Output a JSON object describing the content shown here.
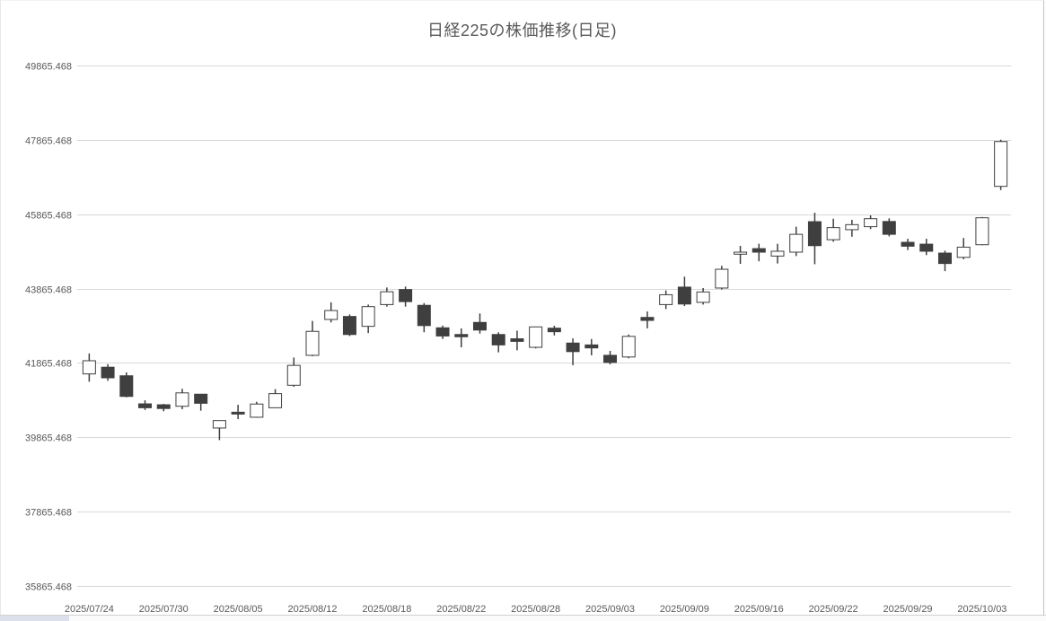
{
  "page": {
    "background": "#ffffff"
  },
  "chart": {
    "title": "日経225の株価推移(日足)",
    "y_axis": {
      "labels": [
        "49865.468",
        "47865.468",
        "45865.468",
        "43865.468",
        "41865.468",
        "39865.468",
        "37865.468",
        "35865.468"
      ],
      "min": 35865.468,
      "max": 49865.468,
      "step": 2000
    },
    "x_axis": {
      "labels": [
        "2025/07/24",
        "2025/07/30",
        "2025/08/05",
        "2025/08/12",
        "2025/08/18",
        "2025/08/22",
        "2025/08/28",
        "2025/09/03",
        "2025/09/09",
        "2025/09/16",
        "2025/09/22",
        "2025/09/29",
        "2025/10/03"
      ],
      "label_every_n_candles": 4
    },
    "colors": {
      "up_fill": "#ffffff",
      "down_fill": "#3f3f3f",
      "body_stroke": "#3f3f3f",
      "wick": "#3f3f3f",
      "gridline": "#d9d9d9",
      "axis_text": "#595959",
      "title_text": "#595959",
      "bottom_strip": "#dbe0eb"
    }
  },
  "chart_data": {
    "type": "candlestick",
    "title": "日経225の株価推移(日足)",
    "xlabel": "",
    "ylabel": "",
    "ylim": [
      35865.468,
      49865.468
    ],
    "grid": true,
    "legend": false,
    "candles": [
      {
        "date": "2025/07/24",
        "open": 41570,
        "high": 42120,
        "low": 41360,
        "close": 41925
      },
      {
        "date": "2025/07/25",
        "open": 41750,
        "high": 41830,
        "low": 41385,
        "close": 41465
      },
      {
        "date": "2025/07/28",
        "open": 41520,
        "high": 41610,
        "low": 40940,
        "close": 40965
      },
      {
        "date": "2025/07/29",
        "open": 40765,
        "high": 40860,
        "low": 40600,
        "close": 40660
      },
      {
        "date": "2025/07/30",
        "open": 40740,
        "high": 40765,
        "low": 40565,
        "close": 40640
      },
      {
        "date": "2025/07/31",
        "open": 40700,
        "high": 41170,
        "low": 40620,
        "close": 41060
      },
      {
        "date": "2025/08/01",
        "open": 41025,
        "high": 41030,
        "low": 40580,
        "close": 40780
      },
      {
        "date": "2025/08/04",
        "open": 40115,
        "high": 40315,
        "low": 39790,
        "close": 40315
      },
      {
        "date": "2025/08/05",
        "open": 40540,
        "high": 40740,
        "low": 40355,
        "close": 40490
      },
      {
        "date": "2025/08/06",
        "open": 40405,
        "high": 40820,
        "low": 40390,
        "close": 40760
      },
      {
        "date": "2025/08/07",
        "open": 40660,
        "high": 41160,
        "low": 40650,
        "close": 41040
      },
      {
        "date": "2025/08/08",
        "open": 41265,
        "high": 42010,
        "low": 41225,
        "close": 41800
      },
      {
        "date": "2025/08/12",
        "open": 42070,
        "high": 42995,
        "low": 42045,
        "close": 42715
      },
      {
        "date": "2025/08/13",
        "open": 43035,
        "high": 43495,
        "low": 42955,
        "close": 43275
      },
      {
        "date": "2025/08/14",
        "open": 43115,
        "high": 43170,
        "low": 42590,
        "close": 42630
      },
      {
        "date": "2025/08/15",
        "open": 42850,
        "high": 43435,
        "low": 42670,
        "close": 43380
      },
      {
        "date": "2025/08/18",
        "open": 43435,
        "high": 43895,
        "low": 43380,
        "close": 43780
      },
      {
        "date": "2025/08/19",
        "open": 43840,
        "high": 43920,
        "low": 43380,
        "close": 43515
      },
      {
        "date": "2025/08/20",
        "open": 43415,
        "high": 43475,
        "low": 42690,
        "close": 42870
      },
      {
        "date": "2025/08/21",
        "open": 42810,
        "high": 42870,
        "low": 42510,
        "close": 42590
      },
      {
        "date": "2025/08/22",
        "open": 42630,
        "high": 42795,
        "low": 42285,
        "close": 42570
      },
      {
        "date": "2025/08/25",
        "open": 42955,
        "high": 43195,
        "low": 42655,
        "close": 42750
      },
      {
        "date": "2025/08/26",
        "open": 42630,
        "high": 42690,
        "low": 42150,
        "close": 42350
      },
      {
        "date": "2025/08/27",
        "open": 42515,
        "high": 42735,
        "low": 42205,
        "close": 42445
      },
      {
        "date": "2025/08/28",
        "open": 42285,
        "high": 42840,
        "low": 42255,
        "close": 42835
      },
      {
        "date": "2025/08/29",
        "open": 42800,
        "high": 42865,
        "low": 42605,
        "close": 42705
      },
      {
        "date": "2025/09/01",
        "open": 42400,
        "high": 42525,
        "low": 41805,
        "close": 42170
      },
      {
        "date": "2025/09/02",
        "open": 42350,
        "high": 42510,
        "low": 42070,
        "close": 42270
      },
      {
        "date": "2025/09/03",
        "open": 42070,
        "high": 42190,
        "low": 41825,
        "close": 41880
      },
      {
        "date": "2025/09/04",
        "open": 42025,
        "high": 42630,
        "low": 41990,
        "close": 42580
      },
      {
        "date": "2025/09/05",
        "open": 43090,
        "high": 43250,
        "low": 42795,
        "close": 43010
      },
      {
        "date": "2025/09/08",
        "open": 43435,
        "high": 43815,
        "low": 43315,
        "close": 43700
      },
      {
        "date": "2025/09/09",
        "open": 43905,
        "high": 44185,
        "low": 43395,
        "close": 43450
      },
      {
        "date": "2025/09/10",
        "open": 43495,
        "high": 43880,
        "low": 43435,
        "close": 43775
      },
      {
        "date": "2025/09/11",
        "open": 43880,
        "high": 44480,
        "low": 43840,
        "close": 44385
      },
      {
        "date": "2025/09/12",
        "open": 44790,
        "high": 45015,
        "low": 44530,
        "close": 44845
      },
      {
        "date": "2025/09/16",
        "open": 44940,
        "high": 45070,
        "low": 44600,
        "close": 44845
      },
      {
        "date": "2025/09/17",
        "open": 44740,
        "high": 45070,
        "low": 44540,
        "close": 44870
      },
      {
        "date": "2025/09/18",
        "open": 44845,
        "high": 45530,
        "low": 44740,
        "close": 45325
      },
      {
        "date": "2025/09/19",
        "open": 45665,
        "high": 45905,
        "low": 44520,
        "close": 45020
      },
      {
        "date": "2025/09/22",
        "open": 45180,
        "high": 45745,
        "low": 45125,
        "close": 45505
      },
      {
        "date": "2025/09/24",
        "open": 45450,
        "high": 45715,
        "low": 45260,
        "close": 45585
      },
      {
        "date": "2025/09/25",
        "open": 45530,
        "high": 45835,
        "low": 45465,
        "close": 45745
      },
      {
        "date": "2025/09/26",
        "open": 45670,
        "high": 45755,
        "low": 45270,
        "close": 45325
      },
      {
        "date": "2025/09/29",
        "open": 45110,
        "high": 45205,
        "low": 44900,
        "close": 45005
      },
      {
        "date": "2025/09/30",
        "open": 45060,
        "high": 45205,
        "low": 44765,
        "close": 44870
      },
      {
        "date": "2025/10/01",
        "open": 44820,
        "high": 44885,
        "low": 44335,
        "close": 44540
      },
      {
        "date": "2025/10/02",
        "open": 44705,
        "high": 45225,
        "low": 44655,
        "close": 44980
      },
      {
        "date": "2025/10/03",
        "open": 45045,
        "high": 45790,
        "low": 45030,
        "close": 45770
      },
      {
        "date": "2025/10/06",
        "open": 46615,
        "high": 47870,
        "low": 46515,
        "close": 47820
      }
    ]
  }
}
